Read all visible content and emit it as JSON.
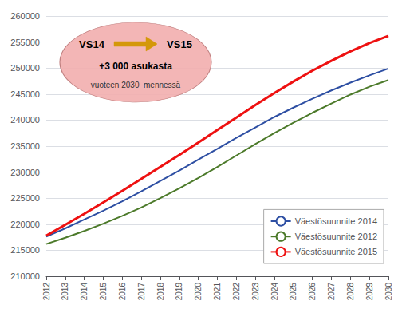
{
  "chart_data": {
    "type": "line",
    "x": [
      2012,
      2013,
      2014,
      2015,
      2016,
      2017,
      2018,
      2019,
      2020,
      2021,
      2022,
      2023,
      2024,
      2025,
      2026,
      2027,
      2028,
      2029,
      2030
    ],
    "series": [
      {
        "name": "Väestösuunnite 2014",
        "color": "#2E4FA3",
        "values": [
          217600,
          219200,
          220900,
          222600,
          224400,
          226300,
          228300,
          230300,
          232400,
          234500,
          236600,
          238600,
          240600,
          242400,
          244100,
          245700,
          247200,
          248600,
          249900
        ]
      },
      {
        "name": "Väestösuunnite 2012",
        "color": "#4C7A2A",
        "values": [
          216200,
          217400,
          218700,
          220100,
          221600,
          223200,
          225000,
          226900,
          228900,
          231000,
          233200,
          235400,
          237500,
          239500,
          241400,
          243200,
          244900,
          246400,
          247700
        ]
      },
      {
        "name": "Väestösuunnite 2015",
        "color": "#EE1111",
        "values": [
          217800,
          219900,
          222000,
          224200,
          226400,
          228700,
          231000,
          233300,
          235700,
          238100,
          240500,
          242900,
          245200,
          247400,
          249500,
          251400,
          253200,
          254800,
          256200
        ]
      }
    ],
    "xlim": [
      2012,
      2030
    ],
    "xticks": [
      2012,
      2013,
      2014,
      2015,
      2016,
      2017,
      2018,
      2019,
      2020,
      2021,
      2022,
      2023,
      2024,
      2025,
      2026,
      2027,
      2028,
      2029,
      2030
    ],
    "ylim": [
      210000,
      260000
    ],
    "yticks": [
      210000,
      215000,
      220000,
      225000,
      230000,
      235000,
      240000,
      245000,
      250000,
      255000,
      260000
    ],
    "grid": true,
    "legend": "lower right",
    "annotations": [
      "VS14",
      "VS15",
      "+3 000 asukasta",
      "vuoteen 2030  mennessä"
    ]
  }
}
